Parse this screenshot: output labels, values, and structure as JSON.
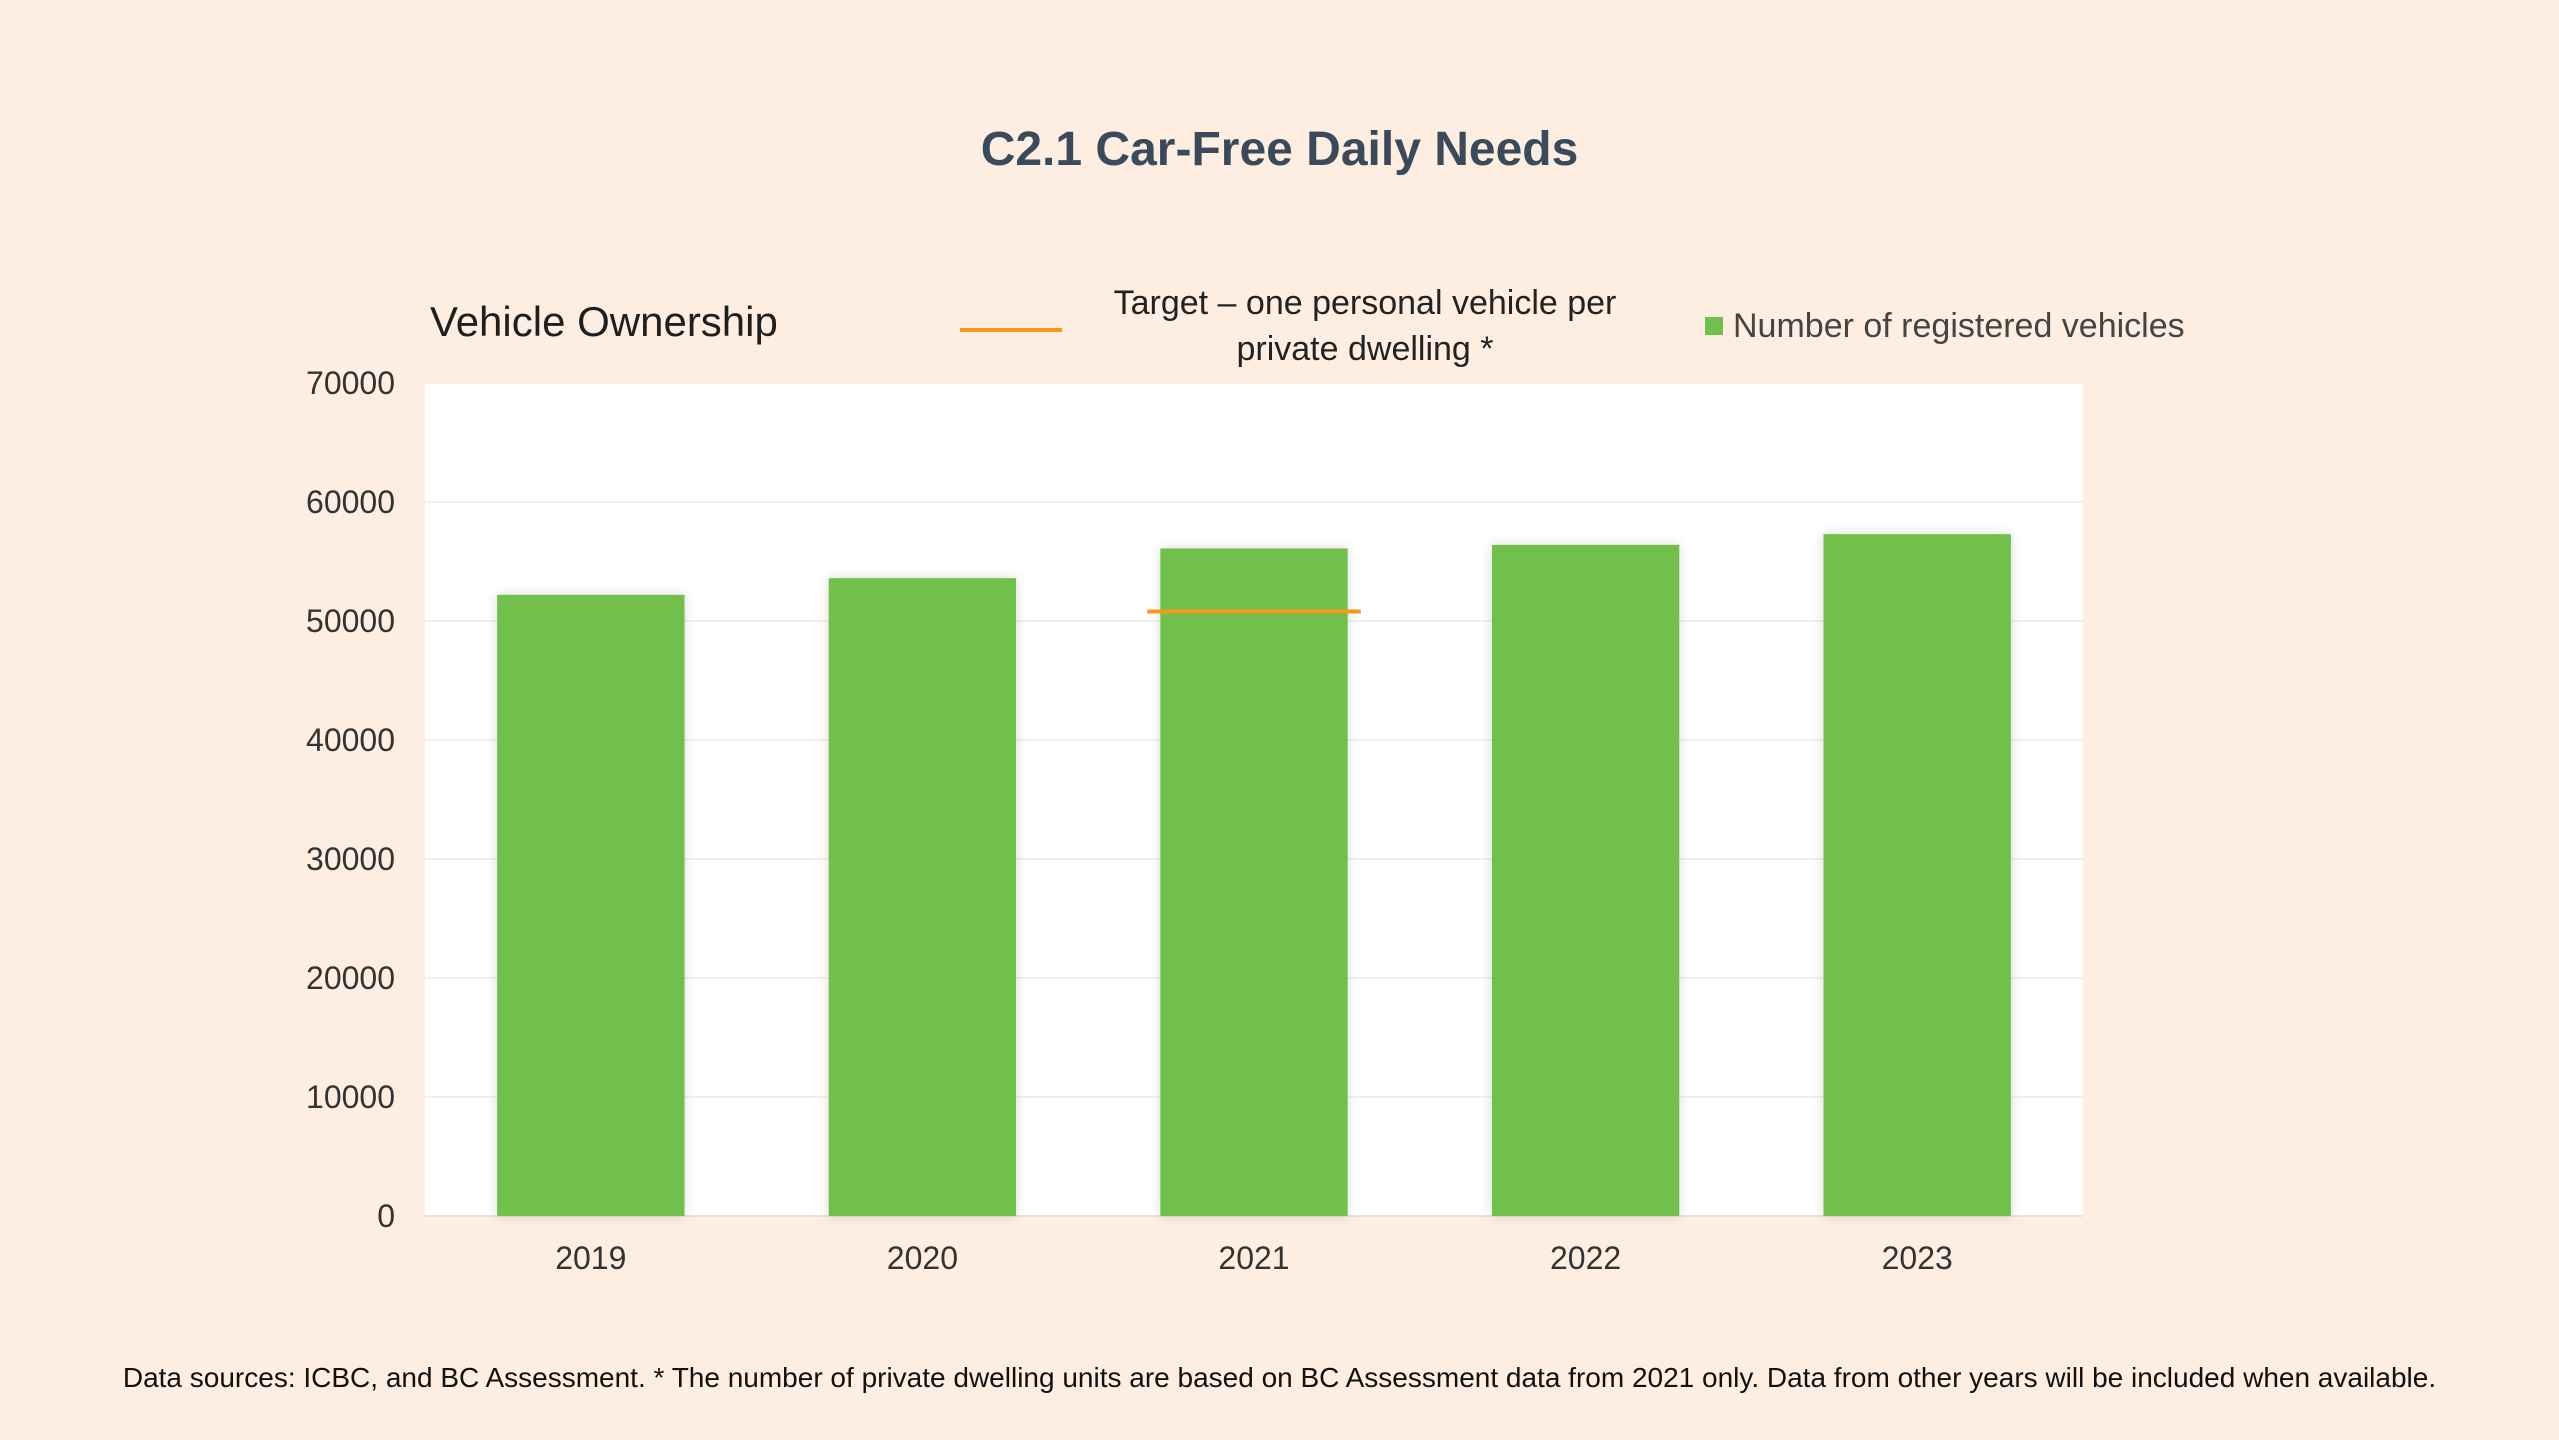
{
  "page": {
    "title": "C2.1 Car-Free Daily Needs",
    "footnote": "Data sources: ICBC, and BC Assessment. * The number of private dwelling units are based on BC Assessment data from 2021 only. Data from other years will be included when available."
  },
  "colors": {
    "background": "#fdeee1",
    "plot_background": "#ffffff",
    "bar": "#70c04c",
    "target_line": "#f49a1a",
    "title": "#3b4a5a"
  },
  "chart_data": {
    "type": "bar",
    "title": "Vehicle Ownership",
    "categories": [
      "2019",
      "2020",
      "2021",
      "2022",
      "2023"
    ],
    "series": [
      {
        "name": "Number of registered vehicles",
        "type": "bar",
        "values": [
          52200,
          53600,
          56100,
          56400,
          57300
        ]
      },
      {
        "name": "Target – one personal vehicle per private dwelling *",
        "type": "line",
        "x": [
          "2021"
        ],
        "values": [
          50800
        ]
      }
    ],
    "yticks": [
      "0",
      "10000",
      "20000",
      "30000",
      "40000",
      "50000",
      "60000",
      "70000"
    ],
    "ylim": [
      0,
      70000
    ],
    "grid": true,
    "legend_position": "top"
  }
}
